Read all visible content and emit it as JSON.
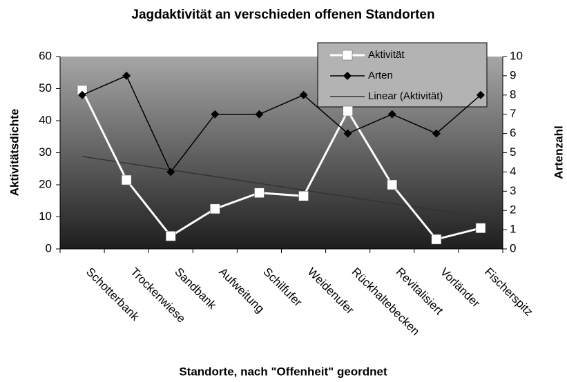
{
  "chart_data": {
    "type": "line",
    "title": "Jagdaktivität an verschieden offenen Standorten",
    "x_label": "Standorte, nach \"Offenheit\" geordnet",
    "y_label": "Aktivitätsdichte",
    "y2_label": "Artenzahl",
    "categories": [
      "Schotterbank",
      "Trockenwiese",
      "Sandbank",
      "Aufweitung",
      "Schilfufer",
      "Weidenufer",
      "Rückhaltebecken",
      "Revitalisiert",
      "Vorländer",
      "Fischerspitz"
    ],
    "series": [
      {
        "name": "Aktivität",
        "color": "#ffffff",
        "marker": "square",
        "values": [
          49.5,
          21.5,
          4,
          12.5,
          17.5,
          16.5,
          43,
          20,
          3,
          6.5
        ]
      },
      {
        "name": "Arten",
        "color": "#000000",
        "marker": "diamond",
        "axis": "y2",
        "values": [
          8,
          9,
          4,
          7,
          7,
          8,
          6,
          7,
          6,
          8
        ]
      }
    ],
    "trendline": {
      "name": "Linear (Aktivität)",
      "color": "#333333"
    },
    "ylim": [
      0,
      60
    ],
    "yticks": [
      0,
      10,
      20,
      30,
      40,
      50,
      60
    ],
    "y2lim": [
      0,
      10
    ],
    "y2ticks": [
      0,
      1,
      2,
      3,
      4,
      5,
      6,
      7,
      8,
      9,
      10
    ],
    "legend": "top-right"
  }
}
